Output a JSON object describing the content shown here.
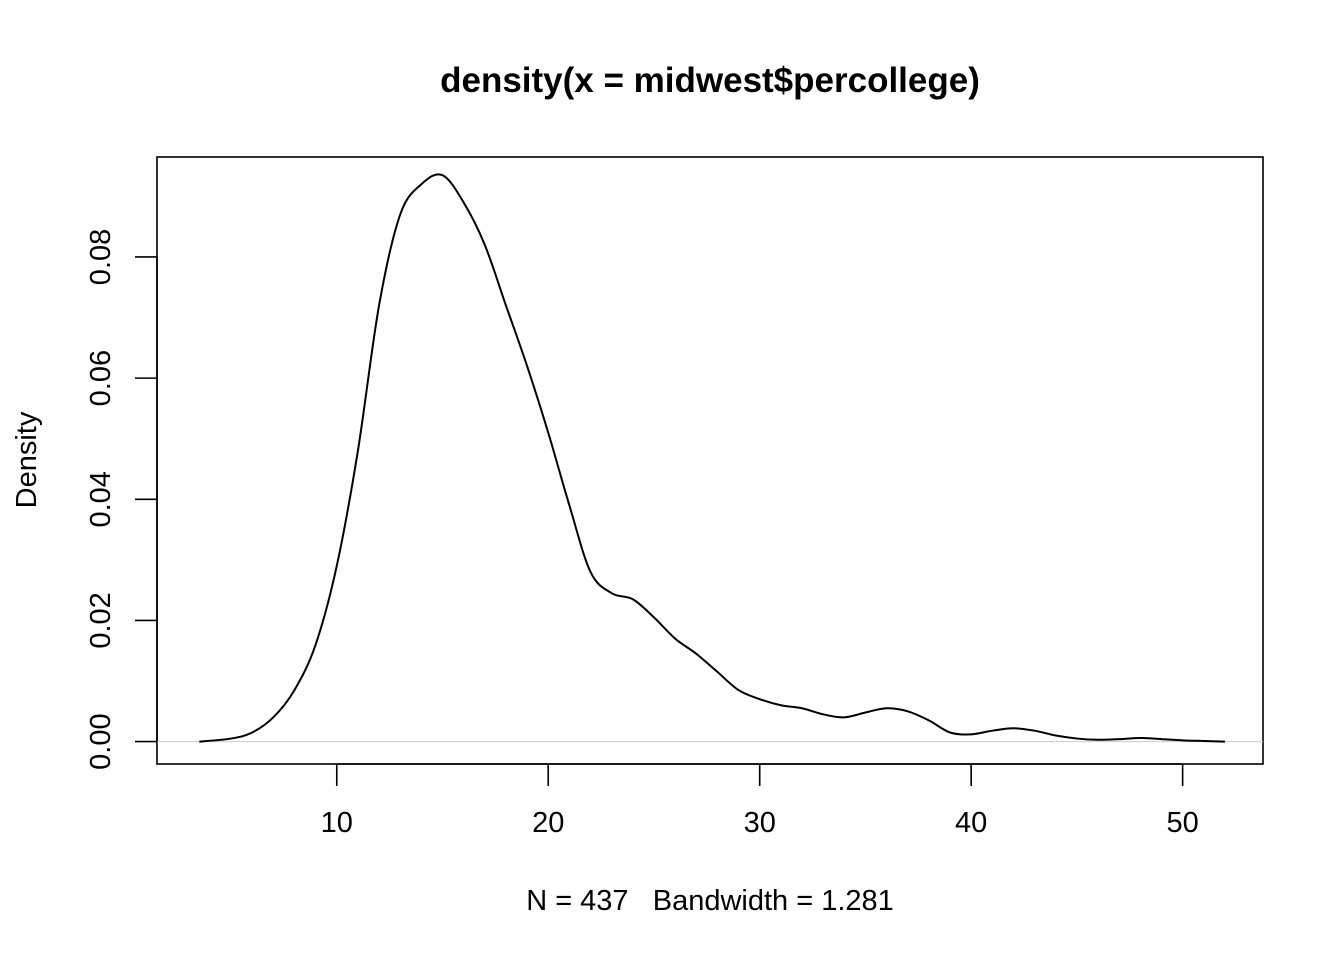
{
  "chart_data": {
    "type": "line",
    "title": "density(x = midwest$percollege)",
    "xlabel": "N = 437   Bandwidth = 1.281",
    "ylabel": "Density",
    "xlim": [
      1.5,
      53.8
    ],
    "ylim": [
      -0.0037,
      0.0965
    ],
    "xticks": [
      10,
      20,
      30,
      40,
      50
    ],
    "xtick_labels": [
      "10",
      "20",
      "30",
      "40",
      "50"
    ],
    "yticks": [
      0.0,
      0.02,
      0.04,
      0.06,
      0.08
    ],
    "ytick_labels": [
      "0.00",
      "0.02",
      "0.04",
      "0.06",
      "0.08"
    ],
    "grid": false,
    "baseline": 0,
    "colors": {
      "line": "#000000",
      "baseline": "#cccccc"
    },
    "series": [
      {
        "x": [
          3.5,
          5.0,
          6.0,
          7.0,
          8.0,
          9.0,
          10.0,
          11.0,
          12.0,
          13.0,
          14.0,
          15.0,
          16.0,
          17.0,
          18.0,
          19.0,
          20.0,
          21.0,
          22.0,
          23.0,
          24.0,
          25.0,
          26.0,
          27.0,
          28.0,
          29.0,
          30.0,
          31.0,
          32.0,
          33.0,
          34.0,
          35.0,
          36.0,
          37.0,
          38.0,
          39.0,
          40.0,
          41.0,
          42.0,
          43.0,
          44.0,
          45.0,
          46.0,
          47.0,
          48.0,
          49.0,
          50.0,
          51.0,
          52.0
        ],
        "y": [
          0.0,
          0.0005,
          0.0015,
          0.004,
          0.0085,
          0.016,
          0.029,
          0.048,
          0.072,
          0.087,
          0.092,
          0.0935,
          0.089,
          0.082,
          0.072,
          0.062,
          0.051,
          0.039,
          0.028,
          0.0245,
          0.0235,
          0.0205,
          0.017,
          0.0145,
          0.0115,
          0.0085,
          0.007,
          0.006,
          0.0055,
          0.0045,
          0.004,
          0.0048,
          0.0055,
          0.005,
          0.0035,
          0.0015,
          0.0012,
          0.0018,
          0.0022,
          0.0018,
          0.001,
          0.0005,
          0.0003,
          0.0004,
          0.0006,
          0.0004,
          0.0002,
          0.0001,
          0.0
        ]
      }
    ]
  }
}
